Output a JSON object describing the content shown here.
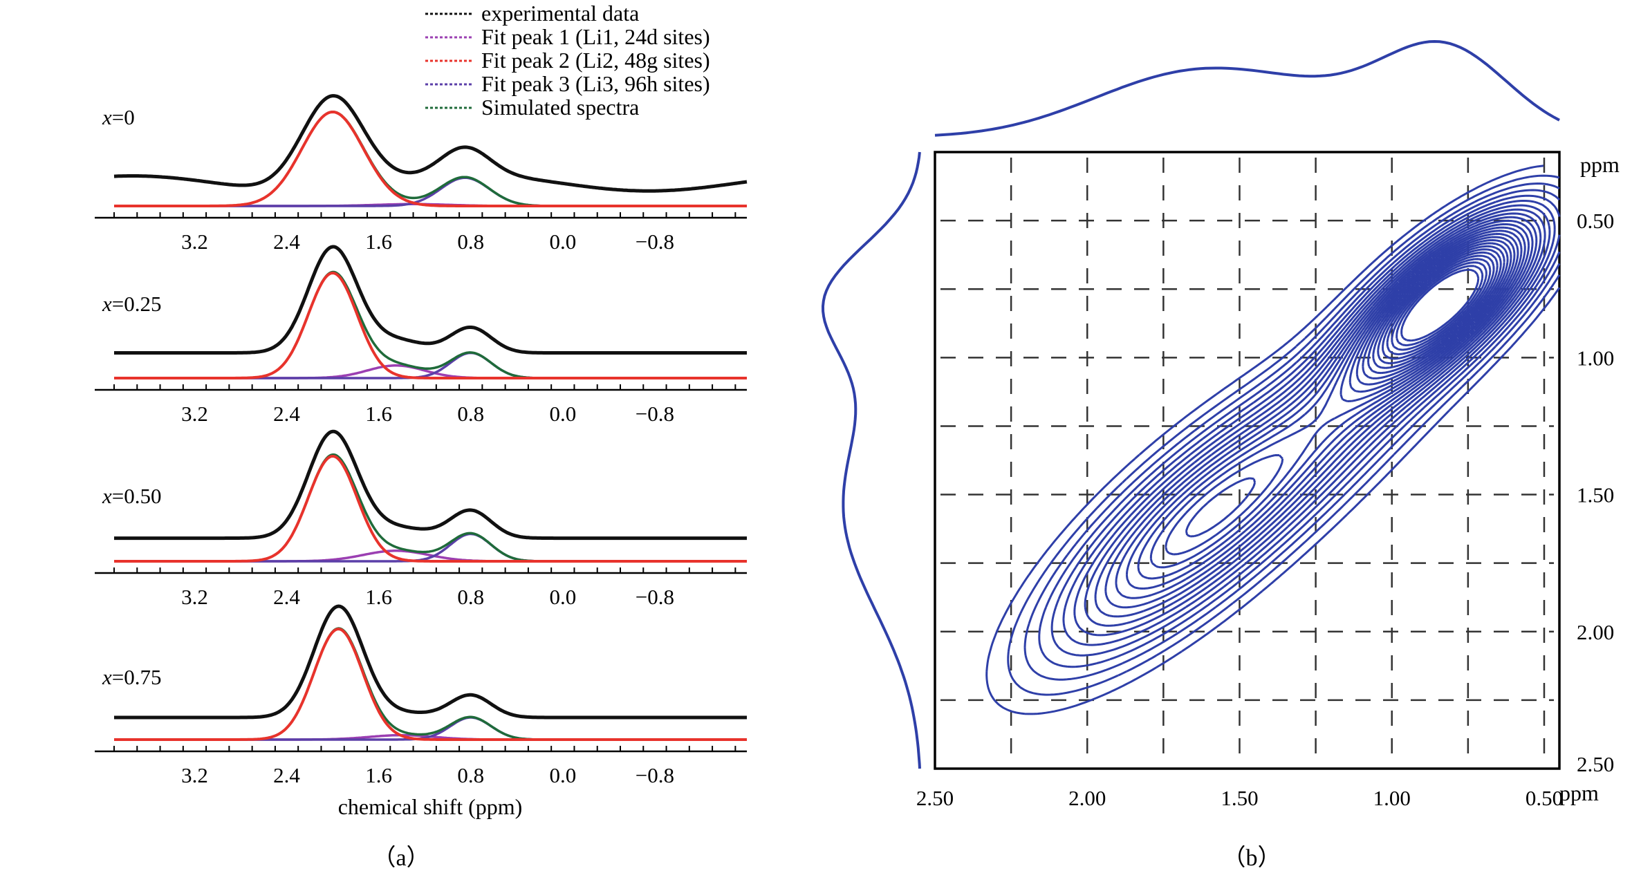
{
  "colors": {
    "experimental": "#111111",
    "peak1": "#9b3fb2",
    "peak2": "#e8332c",
    "peak3": "#5b3fa8",
    "simulated": "#1f6b3a",
    "contour": "#2e3fa8",
    "grid": "#333333"
  },
  "panel_labels": {
    "a": "（a）",
    "b": "（b）"
  },
  "chart_data": [
    {
      "type": "line",
      "panel": "a",
      "title": "",
      "xlabel": "chemical shift (ppm)",
      "ylabel": "",
      "xlim": [
        3.9,
        -1.6
      ],
      "x_reversed": true,
      "x_ticks": [
        "3.2",
        "2.4",
        "1.6",
        "0.8",
        "0.0",
        "−0.8"
      ],
      "x_tick_values": [
        3.2,
        2.4,
        1.6,
        0.8,
        0.0,
        -0.8
      ],
      "legend": {
        "position": "top",
        "entries": [
          "experimental data",
          "Fit peak 1 (Li1, 24d sites)",
          "Fit peak 2 (Li2, 48g sites)",
          "Fit peak 3 (Li3, 96h sites)",
          "Simulated spectra"
        ]
      },
      "spectra": [
        {
          "label": "x=0",
          "label_var": "x",
          "label_val": "=0",
          "peak1": {
            "center": 1.3,
            "height": 0.02,
            "width": 0.45
          },
          "peak2": {
            "center": 2.0,
            "height": 1.0,
            "width": 0.38
          },
          "peak3": {
            "center": 0.85,
            "height": 0.3,
            "width": 0.3
          },
          "experimental_offset": 0.24,
          "experimental_baseline": 0.08
        },
        {
          "label": "x=0.25",
          "label_var": "x",
          "label_val": "=0.25",
          "peak1": {
            "center": 1.45,
            "height": 0.12,
            "width": 0.35
          },
          "peak2": {
            "center": 2.0,
            "height": 1.0,
            "width": 0.3
          },
          "peak3": {
            "center": 0.8,
            "height": 0.24,
            "width": 0.25
          },
          "experimental_offset": 0.24,
          "experimental_baseline": 0.0
        },
        {
          "label": "x=0.50",
          "label_var": "x",
          "label_val": "=0.50",
          "peak1": {
            "center": 1.45,
            "height": 0.1,
            "width": 0.4
          },
          "peak2": {
            "center": 2.0,
            "height": 1.0,
            "width": 0.3
          },
          "peak3": {
            "center": 0.8,
            "height": 0.26,
            "width": 0.25
          },
          "experimental_offset": 0.22,
          "experimental_baseline": 0.0
        },
        {
          "label": "x=0.75",
          "label_var": "x",
          "label_val": "=0.75",
          "peak1": {
            "center": 1.4,
            "height": 0.04,
            "width": 0.4
          },
          "peak2": {
            "center": 1.95,
            "height": 1.0,
            "width": 0.3
          },
          "peak3": {
            "center": 0.8,
            "height": 0.2,
            "width": 0.25
          },
          "experimental_offset": 0.2,
          "experimental_baseline": 0.0
        }
      ]
    },
    {
      "type": "contour",
      "panel": "b",
      "title": "",
      "xlabel": "ppm",
      "ylabel": "ppm",
      "xlim": [
        2.5,
        0.4
      ],
      "ylim": [
        0.3,
        2.5
      ],
      "x_ticks": [
        "2.50",
        "2.00",
        "1.50",
        "1.00",
        "0.50"
      ],
      "x_tick_values": [
        2.5,
        2.0,
        1.5,
        1.0,
        0.5
      ],
      "y_ticks": [
        "0.50",
        "1.00",
        "1.50",
        "2.00",
        "2.50"
      ],
      "y_tick_values": [
        0.5,
        1.0,
        1.5,
        2.0,
        2.5
      ],
      "grid": true,
      "peaks": [
        {
          "x": 0.82,
          "y": 0.78,
          "amplitude": 1.0,
          "sx": 0.17,
          "sy": 0.2
        },
        {
          "x": 1.65,
          "y": 1.62,
          "amplitude": 0.55,
          "sx": 0.28,
          "sy": 0.28
        },
        {
          "x": 1.15,
          "y": 1.2,
          "amplitude": 0.22,
          "sx": 0.25,
          "sy": 0.25
        }
      ],
      "top_projection": "summed profile along horizontal ppm axis",
      "left_projection": "summed profile along vertical ppm axis"
    }
  ]
}
